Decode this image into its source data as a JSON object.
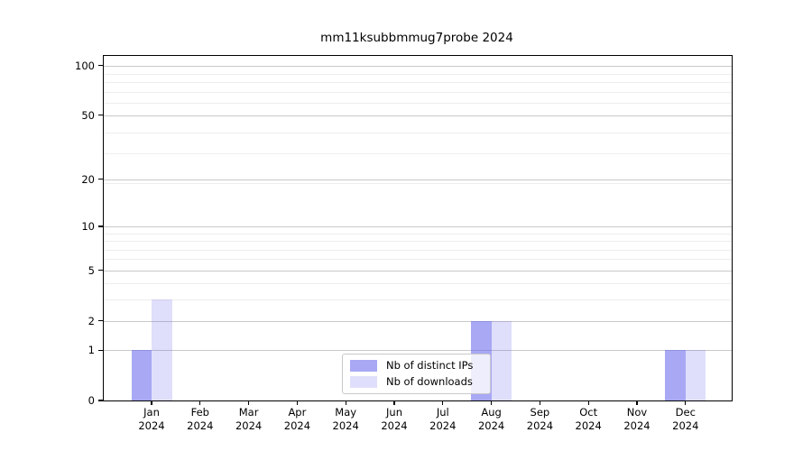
{
  "title": "mm11ksubbmmug7probe 2024",
  "chart_data": {
    "type": "bar",
    "title": "mm11ksubbmmug7probe 2024",
    "categories": [
      "Jan",
      "Feb",
      "Mar",
      "Apr",
      "May",
      "Jun",
      "Jul",
      "Aug",
      "Sep",
      "Oct",
      "Nov",
      "Dec"
    ],
    "category_year": "2024",
    "series": [
      {
        "name": "Nb of distinct IPs",
        "color": "rgba(97,97,237,0.55)",
        "values": [
          1,
          0,
          0,
          0,
          0,
          0,
          0,
          2,
          0,
          0,
          0,
          1
        ]
      },
      {
        "name": "Nb of downloads",
        "color": "rgba(97,97,237,0.20)",
        "values": [
          3,
          0,
          0,
          0,
          0,
          0,
          0,
          2,
          0,
          0,
          0,
          1
        ]
      }
    ],
    "yscale": "log10(1+y)",
    "ylim": [
      0,
      114
    ],
    "yticks": [
      0,
      1,
      2,
      5,
      10,
      20,
      50,
      100
    ],
    "minor_gridlines": [
      3,
      4,
      6,
      7,
      8,
      9,
      19,
      29,
      39,
      59,
      69,
      79,
      89
    ],
    "grid": "horizontal",
    "legend": {
      "position": "lower center",
      "entries": [
        "Nb of distinct IPs",
        "Nb of downloads"
      ]
    }
  }
}
